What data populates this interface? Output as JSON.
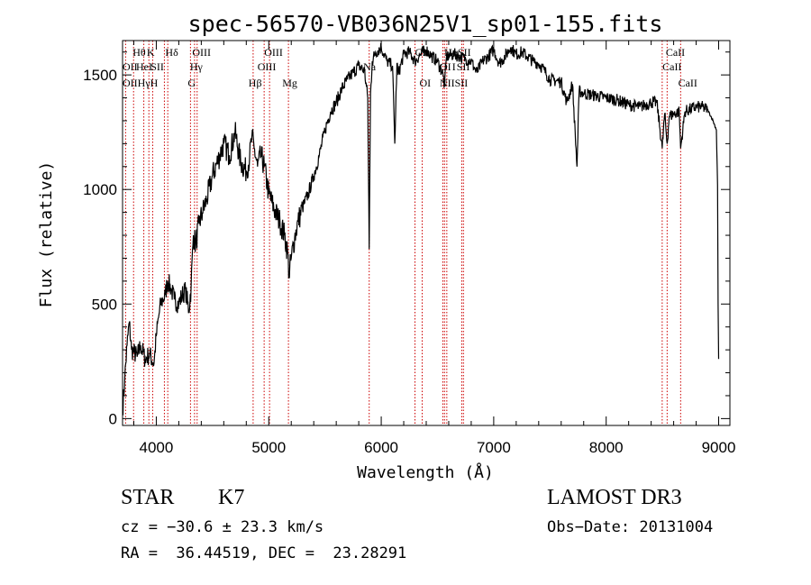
{
  "chart_data": {
    "type": "line",
    "title": "spec-56570-VB036N25V1_sp01-155.fits",
    "xlabel": "Wavelength (Å)",
    "ylabel": "Flux (relative)",
    "xlim": [
      3700,
      9100
    ],
    "ylim": [
      -30,
      1650
    ],
    "xticks": [
      4000,
      5000,
      6000,
      7000,
      8000,
      9000
    ],
    "yticks": [
      0,
      500,
      1000,
      1500
    ],
    "series": [
      {
        "name": "flux",
        "x": [
          3700,
          3720,
          3740,
          3760,
          3780,
          3800,
          3830,
          3860,
          3900,
          3940,
          3980,
          4000,
          4020,
          4040,
          4060,
          4080,
          4100,
          4130,
          4160,
          4200,
          4230,
          4260,
          4290,
          4310,
          4330,
          4350,
          4380,
          4410,
          4450,
          4500,
          4550,
          4600,
          4650,
          4700,
          4750,
          4800,
          4830,
          4850,
          4870,
          4900,
          4930,
          4960,
          5000,
          5030,
          5060,
          5100,
          5140,
          5170,
          5180,
          5200,
          5230,
          5260,
          5300,
          5350,
          5400,
          5450,
          5500,
          5550,
          5600,
          5650,
          5700,
          5750,
          5800,
          5850,
          5880,
          5893,
          5905,
          5920,
          5950,
          6000,
          6050,
          6100,
          6120,
          6140,
          6150,
          6200,
          6250,
          6300,
          6350,
          6400,
          6450,
          6500,
          6550,
          6563,
          6580,
          6650,
          6700,
          6750,
          6800,
          6850,
          6900,
          6950,
          7000,
          7050,
          7100,
          7150,
          7200,
          7250,
          7300,
          7350,
          7400,
          7450,
          7500,
          7600,
          7650,
          7700,
          7740,
          7760,
          7800,
          7900,
          8000,
          8100,
          8200,
          8300,
          8400,
          8450,
          8498,
          8520,
          8542,
          8560,
          8600,
          8650,
          8662,
          8700,
          8750,
          8800,
          8850,
          8900,
          8950,
          8980,
          8990,
          8995,
          9000
        ],
        "y": [
          30,
          180,
          320,
          420,
          300,
          290,
          270,
          320,
          260,
          280,
          240,
          360,
          440,
          500,
          520,
          540,
          600,
          570,
          520,
          500,
          540,
          560,
          470,
          580,
          800,
          760,
          850,
          900,
          960,
          1060,
          1130,
          1200,
          1150,
          1250,
          1120,
          1080,
          1140,
          1230,
          1180,
          1100,
          1150,
          1100,
          980,
          940,
          900,
          860,
          800,
          720,
          620,
          700,
          790,
          860,
          920,
          980,
          1060,
          1150,
          1260,
          1340,
          1380,
          1440,
          1480,
          1510,
          1540,
          1520,
          1400,
          740,
          1420,
          1560,
          1600,
          1620,
          1560,
          1540,
          1200,
          1550,
          1500,
          1590,
          1600,
          1560,
          1590,
          1610,
          1580,
          1560,
          1500,
          1450,
          1580,
          1590,
          1580,
          1570,
          1560,
          1510,
          1560,
          1580,
          1610,
          1550,
          1580,
          1620,
          1590,
          1600,
          1580,
          1560,
          1550,
          1520,
          1480,
          1470,
          1380,
          1460,
          1100,
          1430,
          1420,
          1410,
          1400,
          1390,
          1370,
          1360,
          1380,
          1380,
          1180,
          1330,
          1200,
          1320,
          1330,
          1340,
          1180,
          1340,
          1350,
          1360,
          1360,
          1350,
          1300,
          1260,
          1020,
          500,
          260
        ]
      }
    ],
    "lines": [
      {
        "label": "Hθ",
        "wave": 3798
      },
      {
        "label": "OII",
        "wave": 3727
      },
      {
        "label": "HeI",
        "wave": 3889
      },
      {
        "label": "K",
        "wave": 3934
      },
      {
        "label": "H",
        "wave": 3968
      },
      {
        "label": "SII",
        "wave": 4072
      },
      {
        "label": "Hδ",
        "wave": 4102
      },
      {
        "label": "OIII",
        "wave": 4363
      },
      {
        "label": "Hγ",
        "wave": 4340
      },
      {
        "label": "G",
        "wave": 4304
      },
      {
        "label": "Hβ",
        "wave": 4861
      },
      {
        "label": "OIII",
        "wave": 4959
      },
      {
        "label": "OIII",
        "wave": 5007
      },
      {
        "label": "Mg",
        "wave": 5175
      },
      {
        "label": "Na",
        "wave": 5893
      },
      {
        "label": "OI",
        "wave": 6300
      },
      {
        "label": "OI",
        "wave": 6364
      },
      {
        "label": "Hα",
        "wave": 6563
      },
      {
        "label": "NII",
        "wave": 6548
      },
      {
        "label": "NII",
        "wave": 6583
      },
      {
        "label": "SII",
        "wave": 6716
      },
      {
        "label": "SII",
        "wave": 6731
      },
      {
        "label": "CaII",
        "wave": 8498
      },
      {
        "label": "CaII",
        "wave": 8542
      },
      {
        "label": "CaII",
        "wave": 8662
      }
    ],
    "line_color": "#cc0000"
  },
  "annotations": [
    {
      "text": "Hθ",
      "wave": 3790,
      "row": 0
    },
    {
      "text": "K",
      "wave": 3915,
      "row": 0
    },
    {
      "text": "Hδ",
      "wave": 4080,
      "row": 0
    },
    {
      "text": "OIII",
      "wave": 4320,
      "row": 0
    },
    {
      "text": "OIII",
      "wave": 4960,
      "row": 0
    },
    {
      "text": "CI",
      "wave": 6300,
      "row": 0
    },
    {
      "text": "HαSII",
      "wave": 6560,
      "row": 0
    },
    {
      "text": "CaII",
      "wave": 8530,
      "row": 0
    },
    {
      "text": "OII",
      "wave": 3700,
      "row": 1
    },
    {
      "text": "HeI",
      "wave": 3820,
      "row": 1
    },
    {
      "text": "SII",
      "wave": 3950,
      "row": 1
    },
    {
      "text": "Hγ",
      "wave": 4300,
      "row": 1
    },
    {
      "text": "OIII",
      "wave": 4900,
      "row": 1
    },
    {
      "text": "OI",
      "wave": 6520,
      "row": 1
    },
    {
      "text": "I",
      "wave": 6630,
      "row": 1
    },
    {
      "text": "SII",
      "wave": 6670,
      "row": 1
    },
    {
      "text": "CaII",
      "wave": 8500,
      "row": 1
    },
    {
      "text": "OIIHγH",
      "wave": 3700,
      "row": 2
    },
    {
      "text": "G",
      "wave": 4280,
      "row": 2
    },
    {
      "text": "Hβ",
      "wave": 4820,
      "row": 2
    },
    {
      "text": "Mg",
      "wave": 5120,
      "row": 2
    },
    {
      "text": "Na",
      "wave": 5840,
      "row": 1
    },
    {
      "text": "OI",
      "wave": 6340,
      "row": 2
    },
    {
      "text": "NIISII",
      "wave": 6520,
      "row": 2
    },
    {
      "text": "CaII",
      "wave": 8640,
      "row": 2
    }
  ],
  "footer": {
    "object_type": "STAR",
    "subclass": "K7",
    "redshift": "cz = −30.6 ± 23.3 km/s",
    "coords": "RA =  36.44519, DEC =  23.28291",
    "survey": "LAMOST DR3",
    "obs_date": "Obs−Date: 20131004"
  }
}
